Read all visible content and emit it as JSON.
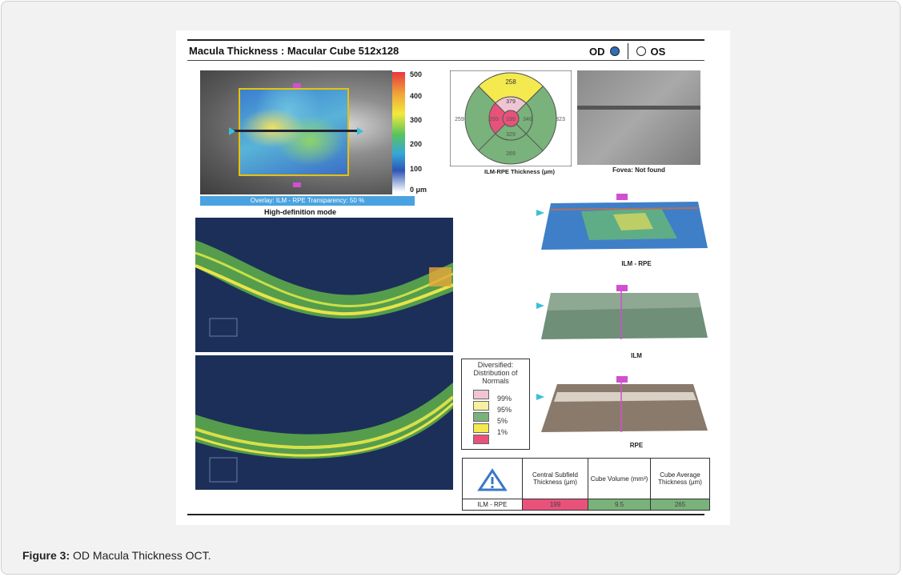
{
  "report": {
    "title": "Macula Thickness : Macular Cube 512x128",
    "eye_od": "OD",
    "eye_os": "OS",
    "selected_eye": "OD",
    "colorbar_labels": [
      "500",
      "400",
      "300",
      "200",
      "100",
      "0 μm"
    ],
    "overlay": "Overlay: ILM - RPE  Transparency: 50 %",
    "mode": "High-definition mode",
    "grid_caption": "ILM-RPE Thickness (μm)",
    "grid": {
      "superior_outer": "258",
      "superior_inner": "379",
      "nasal_outer": "259",
      "nasal_inner": "293",
      "center": "199",
      "temporal_inner": "346",
      "temporal_outer": "323",
      "inferior_inner": "329",
      "inferior_outer": "269"
    },
    "fovea": "Fovea: Not found",
    "surfaces": [
      "ILM - RPE",
      "ILM",
      "RPE"
    ],
    "legend": {
      "title": "Diversified: Distribution of Normals",
      "items": [
        "99%",
        "95%",
        "5%",
        "1%"
      ]
    },
    "table": {
      "headers": [
        "Central Subfield Thickness (μm)",
        "Cube Volume (mm³)",
        "Cube Average Thickness (μm)"
      ],
      "row_label": "ILM - RPE",
      "values": [
        "199",
        "9.5",
        "265"
      ]
    }
  },
  "caption": {
    "label": "Figure 3:",
    "text": "OD Macula Thickness OCT."
  },
  "colors": {
    "pink": "#e8527a",
    "yellow": "#f4ea4f",
    "green": "#79b27a",
    "light_pink": "#efc5d4",
    "od_fill": "#2e6fb5"
  }
}
